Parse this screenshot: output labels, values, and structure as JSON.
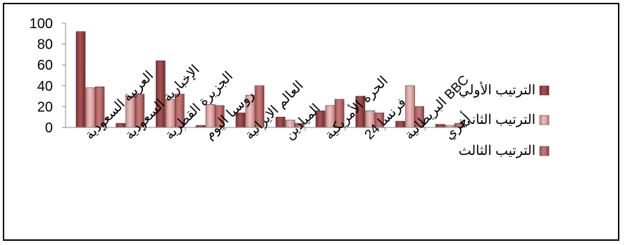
{
  "chart_data": {
    "type": "bar",
    "categories": [
      "العربية السعودية",
      "الإخبارية السعودية",
      "الجزيرة القطرية",
      "روسيا اليوم",
      "العالم الايرانية",
      "الميادين",
      "الحرة الأمريكية",
      "فرنسا 24",
      "BBC البريطانية",
      "أخري"
    ],
    "series": [
      {
        "name": "الترتيب الأولي",
        "values": [
          92,
          4,
          64,
          2,
          14,
          10,
          16,
          30,
          6,
          3
        ],
        "color": "#9b4a49"
      },
      {
        "name": "الترتيب الثاني",
        "values": [
          38,
          30,
          27,
          22,
          31,
          7,
          21,
          16,
          40,
          2
        ],
        "color": "#d8a2a1"
      },
      {
        "name": "الترتيب الثالث",
        "values": [
          39,
          32,
          32,
          21,
          40,
          4,
          27,
          14,
          20,
          4
        ],
        "color": "#b86a69"
      }
    ],
    "ylim": [
      0,
      100
    ],
    "yticks": [
      "0",
      "20",
      "40",
      "60",
      "80",
      "100"
    ],
    "grid": false,
    "legend_position": "right"
  }
}
